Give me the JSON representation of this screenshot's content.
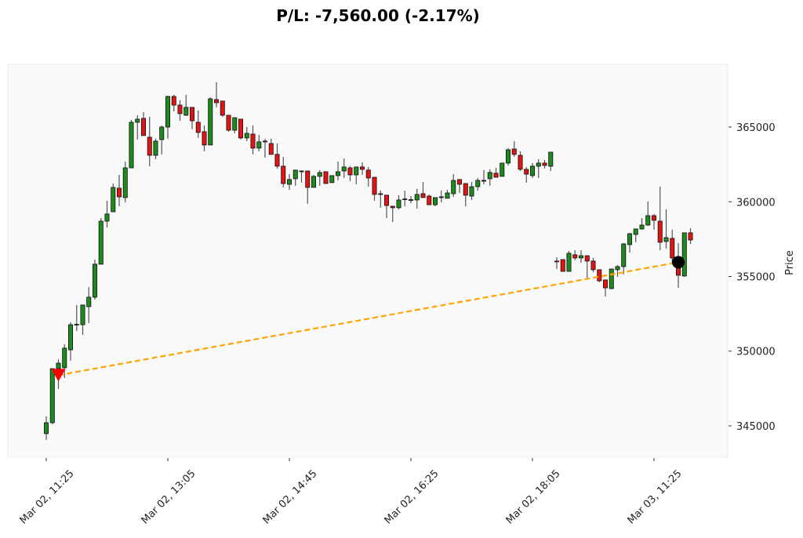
{
  "chart_data": {
    "type": "candlestick",
    "title": "P/L: -7,560.00 (-2.17%)",
    "xlabel": "",
    "ylabel": "Price",
    "ylim": [
      342900,
      369200
    ],
    "yticks": [
      345000,
      350000,
      355000,
      360000,
      365000
    ],
    "ytick_labels": [
      "345000",
      "350000",
      "355000",
      "360000",
      "365000"
    ],
    "xtick_labels": [
      "Mar 02, 11:25",
      "Mar 02, 13:05",
      "Mar 02, 14:45",
      "Mar 02, 16:25",
      "Mar 02, 18:05",
      "Mar 03, 11:25"
    ],
    "grid": false,
    "colors": {
      "up": "#1f8b1f",
      "down": "#e41414",
      "wick": "#555555",
      "edge": "#111111",
      "trade_line": "#ffa500",
      "entry_marker": "#ff0000",
      "exit_marker": "#000000",
      "plot_bg": "#f9f9f9"
    },
    "trade": {
      "side": "short",
      "entry": {
        "time": "Mar 02, 11:35",
        "price": 348390,
        "marker": "triangle-down"
      },
      "exit": {
        "time": "Mar 03, 11:45",
        "price": 355950,
        "marker": "circle"
      },
      "pnl": -7560.0,
      "pnl_pct": -2.17
    },
    "candles": [
      {
        "t": "Mar 02, 11:25",
        "o": 344480,
        "h": 345630,
        "l": 344060,
        "c": 345210
      },
      {
        "t": "Mar 02, 11:30",
        "o": 345210,
        "h": 348830,
        "l": 345100,
        "c": 348830
      },
      {
        "t": "Mar 02, 11:35",
        "o": 348830,
        "h": 349460,
        "l": 347470,
        "c": 349200
      },
      {
        "t": "Mar 02, 11:40",
        "o": 348890,
        "h": 350460,
        "l": 348200,
        "c": 350200
      },
      {
        "t": "Mar 02, 11:45",
        "o": 350090,
        "h": 351930,
        "l": 349360,
        "c": 351770
      },
      {
        "t": "Mar 02, 11:50",
        "o": 351770,
        "h": 353090,
        "l": 351350,
        "c": 351800
      },
      {
        "t": "Mar 02, 11:55",
        "o": 351770,
        "h": 353090,
        "l": 351090,
        "c": 353090
      },
      {
        "t": "Mar 02, 12:00",
        "o": 352980,
        "h": 354290,
        "l": 351880,
        "c": 353610
      },
      {
        "t": "Mar 02, 12:05",
        "o": 353610,
        "h": 356130,
        "l": 353450,
        "c": 355820
      },
      {
        "t": "Mar 02, 12:10",
        "o": 355820,
        "h": 358910,
        "l": 355820,
        "c": 358700
      },
      {
        "t": "Mar 02, 12:15",
        "o": 358700,
        "h": 360070,
        "l": 358280,
        "c": 359180
      },
      {
        "t": "Mar 02, 12:20",
        "o": 359330,
        "h": 361220,
        "l": 359330,
        "c": 360960
      },
      {
        "t": "Mar 02, 12:25",
        "o": 360910,
        "h": 361800,
        "l": 359700,
        "c": 360330
      },
      {
        "t": "Mar 02, 12:30",
        "o": 360280,
        "h": 362690,
        "l": 359960,
        "c": 362270
      },
      {
        "t": "Mar 02, 12:35",
        "o": 362270,
        "h": 365480,
        "l": 362270,
        "c": 365320
      },
      {
        "t": "Mar 02, 12:40",
        "o": 365320,
        "h": 365790,
        "l": 364160,
        "c": 365530
      },
      {
        "t": "Mar 02, 12:45",
        "o": 365580,
        "h": 366000,
        "l": 364430,
        "c": 364430
      },
      {
        "t": "Mar 02, 12:50",
        "o": 364320,
        "h": 365690,
        "l": 362380,
        "c": 363110
      },
      {
        "t": "Mar 02, 12:55",
        "o": 363110,
        "h": 364220,
        "l": 362850,
        "c": 364060
      },
      {
        "t": "Mar 02, 13:00",
        "o": 364160,
        "h": 365110,
        "l": 363170,
        "c": 365000
      },
      {
        "t": "Mar 02, 13:05",
        "o": 365000,
        "h": 367100,
        "l": 364220,
        "c": 367050
      },
      {
        "t": "Mar 02, 13:10",
        "o": 367050,
        "h": 367160,
        "l": 366050,
        "c": 366470
      },
      {
        "t": "Mar 02, 13:15",
        "o": 366470,
        "h": 366790,
        "l": 365420,
        "c": 365900
      },
      {
        "t": "Mar 02, 13:20",
        "o": 365790,
        "h": 367160,
        "l": 365740,
        "c": 366320
      },
      {
        "t": "Mar 02, 13:25",
        "o": 366320,
        "h": 366320,
        "l": 364850,
        "c": 365420
      },
      {
        "t": "Mar 02, 13:30",
        "o": 365320,
        "h": 366110,
        "l": 364270,
        "c": 364640
      },
      {
        "t": "Mar 02, 13:35",
        "o": 364690,
        "h": 365110,
        "l": 363380,
        "c": 363800
      },
      {
        "t": "Mar 02, 13:40",
        "o": 363800,
        "h": 367000,
        "l": 363800,
        "c": 366890
      },
      {
        "t": "Mar 02, 13:45",
        "o": 366840,
        "h": 368000,
        "l": 366320,
        "c": 366630
      },
      {
        "t": "Mar 02, 13:50",
        "o": 366740,
        "h": 366740,
        "l": 365690,
        "c": 365790
      },
      {
        "t": "Mar 02, 13:55",
        "o": 365790,
        "h": 365790,
        "l": 364690,
        "c": 364790
      },
      {
        "t": "Mar 02, 14:00",
        "o": 364790,
        "h": 365630,
        "l": 364580,
        "c": 365630
      },
      {
        "t": "Mar 02, 14:05",
        "o": 365530,
        "h": 365530,
        "l": 364160,
        "c": 364270
      },
      {
        "t": "Mar 02, 14:10",
        "o": 364270,
        "h": 365000,
        "l": 364060,
        "c": 364580
      },
      {
        "t": "Mar 02, 14:15",
        "o": 364530,
        "h": 365110,
        "l": 363170,
        "c": 363590
      },
      {
        "t": "Mar 02, 14:20",
        "o": 363590,
        "h": 364480,
        "l": 363380,
        "c": 364010
      },
      {
        "t": "Mar 02, 14:25",
        "o": 364060,
        "h": 364220,
        "l": 362960,
        "c": 364010
      },
      {
        "t": "Mar 02, 14:30",
        "o": 363900,
        "h": 364220,
        "l": 363170,
        "c": 363170
      },
      {
        "t": "Mar 02, 14:35",
        "o": 363170,
        "h": 363900,
        "l": 362220,
        "c": 362380
      },
      {
        "t": "Mar 02, 14:40",
        "o": 362380,
        "h": 363010,
        "l": 360960,
        "c": 361220
      },
      {
        "t": "Mar 02, 14:45",
        "o": 361170,
        "h": 361850,
        "l": 360800,
        "c": 361490
      },
      {
        "t": "Mar 02, 14:50",
        "o": 361540,
        "h": 362120,
        "l": 361070,
        "c": 362120
      },
      {
        "t": "Mar 02, 14:55",
        "o": 362060,
        "h": 362100,
        "l": 361280,
        "c": 362040
      },
      {
        "t": "Mar 02, 15:00",
        "o": 362060,
        "h": 362060,
        "l": 359860,
        "c": 360960
      },
      {
        "t": "Mar 02, 15:05",
        "o": 360960,
        "h": 361800,
        "l": 360960,
        "c": 361700
      },
      {
        "t": "Mar 02, 15:10",
        "o": 361700,
        "h": 362120,
        "l": 361070,
        "c": 361960
      },
      {
        "t": "Mar 02, 15:15",
        "o": 362010,
        "h": 362010,
        "l": 361220,
        "c": 361220
      },
      {
        "t": "Mar 02, 15:20",
        "o": 361280,
        "h": 361750,
        "l": 361280,
        "c": 361750
      },
      {
        "t": "Mar 02, 15:25",
        "o": 361750,
        "h": 362690,
        "l": 361430,
        "c": 362010
      },
      {
        "t": "Mar 02, 15:30",
        "o": 362060,
        "h": 362900,
        "l": 361590,
        "c": 362330
      },
      {
        "t": "Mar 02, 15:35",
        "o": 362270,
        "h": 362380,
        "l": 361380,
        "c": 361800
      },
      {
        "t": "Mar 02, 15:40",
        "o": 361800,
        "h": 362330,
        "l": 361170,
        "c": 362330
      },
      {
        "t": "Mar 02, 15:45",
        "o": 362330,
        "h": 362640,
        "l": 361800,
        "c": 362170
      },
      {
        "t": "Mar 02, 15:50",
        "o": 362120,
        "h": 362330,
        "l": 361010,
        "c": 361590
      },
      {
        "t": "Mar 02, 15:55",
        "o": 361640,
        "h": 361640,
        "l": 360070,
        "c": 360490
      },
      {
        "t": "Mar 02, 16:00",
        "o": 360540,
        "h": 360750,
        "l": 359600,
        "c": 360520
      },
      {
        "t": "Mar 02, 16:05",
        "o": 360440,
        "h": 360440,
        "l": 358910,
        "c": 359750
      },
      {
        "t": "Mar 02, 16:10",
        "o": 359700,
        "h": 359700,
        "l": 358650,
        "c": 359600
      },
      {
        "t": "Mar 02, 16:15",
        "o": 359600,
        "h": 360440,
        "l": 359490,
        "c": 360120
      },
      {
        "t": "Mar 02, 16:20",
        "o": 360170,
        "h": 360750,
        "l": 359700,
        "c": 360190
      },
      {
        "t": "Mar 02, 16:25",
        "o": 360120,
        "h": 360380,
        "l": 359910,
        "c": 360140
      },
      {
        "t": "Mar 02, 16:30",
        "o": 360120,
        "h": 360860,
        "l": 359540,
        "c": 360490
      },
      {
        "t": "Mar 02, 16:35",
        "o": 360540,
        "h": 361330,
        "l": 360280,
        "c": 360280
      },
      {
        "t": "Mar 02, 16:40",
        "o": 360380,
        "h": 360490,
        "l": 359800,
        "c": 359800
      },
      {
        "t": "Mar 02, 16:45",
        "o": 359800,
        "h": 360280,
        "l": 359700,
        "c": 360280
      },
      {
        "t": "Mar 02, 16:50",
        "o": 360330,
        "h": 360750,
        "l": 359960,
        "c": 360310
      },
      {
        "t": "Mar 02, 16:55",
        "o": 360230,
        "h": 360800,
        "l": 360230,
        "c": 360590
      },
      {
        "t": "Mar 02, 17:00",
        "o": 360540,
        "h": 361850,
        "l": 360330,
        "c": 361430
      },
      {
        "t": "Mar 02, 17:05",
        "o": 361490,
        "h": 361490,
        "l": 360590,
        "c": 361170
      },
      {
        "t": "Mar 02, 17:10",
        "o": 361220,
        "h": 361220,
        "l": 359700,
        "c": 360440
      },
      {
        "t": "Mar 02, 17:15",
        "o": 360380,
        "h": 361330,
        "l": 360120,
        "c": 361010
      },
      {
        "t": "Mar 02, 17:20",
        "o": 361010,
        "h": 361590,
        "l": 360750,
        "c": 361430
      },
      {
        "t": "Mar 02, 17:25",
        "o": 361430,
        "h": 362120,
        "l": 361170,
        "c": 361410
      },
      {
        "t": "Mar 02, 17:30",
        "o": 361540,
        "h": 362170,
        "l": 361070,
        "c": 361960
      },
      {
        "t": "Mar 02, 17:35",
        "o": 361910,
        "h": 362270,
        "l": 361640,
        "c": 361640
      },
      {
        "t": "Mar 02, 17:40",
        "o": 361700,
        "h": 362590,
        "l": 361700,
        "c": 362590
      },
      {
        "t": "Mar 02, 17:45",
        "o": 362590,
        "h": 363590,
        "l": 362430,
        "c": 363480
      },
      {
        "t": "Mar 02, 17:50",
        "o": 363530,
        "h": 364060,
        "l": 363010,
        "c": 363170
      },
      {
        "t": "Mar 02, 17:55",
        "o": 363110,
        "h": 363380,
        "l": 362060,
        "c": 362170
      },
      {
        "t": "Mar 02, 18:00",
        "o": 362170,
        "h": 362330,
        "l": 361280,
        "c": 361850
      },
      {
        "t": "Mar 02, 18:05",
        "o": 361750,
        "h": 362590,
        "l": 361590,
        "c": 362380
      },
      {
        "t": "Mar 02, 18:10",
        "o": 362380,
        "h": 362850,
        "l": 361590,
        "c": 362590
      },
      {
        "t": "Mar 02, 18:15",
        "o": 362590,
        "h": 362800,
        "l": 362220,
        "c": 362430
      },
      {
        "t": "Mar 02, 18:20",
        "o": 362380,
        "h": 363320,
        "l": 362060,
        "c": 363320
      },
      {
        "t": "Mar 03, 10:05",
        "o": 356030,
        "h": 356290,
        "l": 355500,
        "c": 356010
      },
      {
        "t": "Mar 03, 10:10",
        "o": 356130,
        "h": 356130,
        "l": 355340,
        "c": 355340
      },
      {
        "t": "Mar 03, 10:15",
        "o": 355340,
        "h": 356710,
        "l": 355340,
        "c": 356550
      },
      {
        "t": "Mar 03, 10:20",
        "o": 356450,
        "h": 356760,
        "l": 356080,
        "c": 356240
      },
      {
        "t": "Mar 03, 10:25",
        "o": 356240,
        "h": 356760,
        "l": 355920,
        "c": 356390
      },
      {
        "t": "Mar 03, 10:30",
        "o": 356390,
        "h": 356390,
        "l": 354820,
        "c": 356030
      },
      {
        "t": "Mar 03, 10:35",
        "o": 356030,
        "h": 356240,
        "l": 355290,
        "c": 355450
      },
      {
        "t": "Mar 03, 10:40",
        "o": 355450,
        "h": 355450,
        "l": 354610,
        "c": 354710
      },
      {
        "t": "Mar 03, 10:45",
        "o": 354770,
        "h": 354770,
        "l": 353660,
        "c": 354240
      },
      {
        "t": "Mar 03, 10:50",
        "o": 354190,
        "h": 355500,
        "l": 354140,
        "c": 355500
      },
      {
        "t": "Mar 03, 10:55",
        "o": 355450,
        "h": 355760,
        "l": 354980,
        "c": 355660
      },
      {
        "t": "Mar 03, 11:00",
        "o": 355660,
        "h": 357230,
        "l": 355130,
        "c": 357180
      },
      {
        "t": "Mar 03, 11:05",
        "o": 357130,
        "h": 357920,
        "l": 356600,
        "c": 357860
      },
      {
        "t": "Mar 03, 11:10",
        "o": 357810,
        "h": 358180,
        "l": 357290,
        "c": 358180
      },
      {
        "t": "Mar 03, 11:15",
        "o": 358180,
        "h": 358910,
        "l": 358130,
        "c": 358440
      },
      {
        "t": "Mar 03, 11:20",
        "o": 358440,
        "h": 360020,
        "l": 358390,
        "c": 359070
      },
      {
        "t": "Mar 03, 11:25",
        "o": 359070,
        "h": 359180,
        "l": 358130,
        "c": 358760
      },
      {
        "t": "Mar 03, 11:30",
        "o": 358700,
        "h": 361010,
        "l": 356760,
        "c": 357290
      },
      {
        "t": "Mar 03, 11:35",
        "o": 357340,
        "h": 359490,
        "l": 356870,
        "c": 357600
      },
      {
        "t": "Mar 03, 11:40",
        "o": 357550,
        "h": 358130,
        "l": 355820,
        "c": 356240
      },
      {
        "t": "Mar 03, 11:45",
        "o": 356240,
        "h": 357230,
        "l": 354240,
        "c": 355080
      },
      {
        "t": "Mar 03, 11:50",
        "o": 355030,
        "h": 357920,
        "l": 354980,
        "c": 357920
      },
      {
        "t": "Mar 03, 11:55",
        "o": 357920,
        "h": 358230,
        "l": 357180,
        "c": 357440
      }
    ]
  }
}
